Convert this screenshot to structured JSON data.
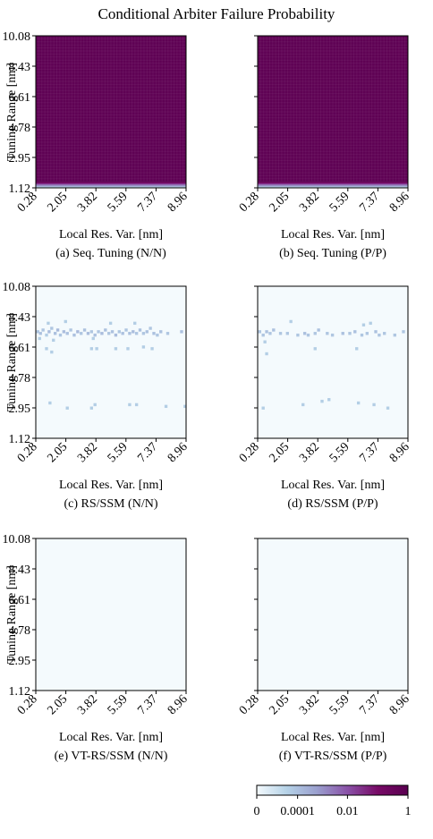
{
  "figure": {
    "title": "Conditional Arbiter Failure Probability"
  },
  "colorbar": {
    "tick_labels": [
      "0",
      "0.0001",
      "0.01",
      "1"
    ],
    "colors": [
      "#f4fafd",
      "#b5d2e7",
      "#9a9fce",
      "#8a52a8",
      "#770a66",
      "#5a0050"
    ]
  },
  "chart_data": [
    {
      "type": "heatmap",
      "caption": "(a) Seq. Tuning (N/N)",
      "xlabel": "Local Res. Var. [nm]",
      "ylabel": "Tuning Range [nm]",
      "x_ticks": [
        "0.28",
        "2.05",
        "3.82",
        "5.59",
        "7.37",
        "8.96"
      ],
      "y_ticks": [
        "10.08",
        "8.43",
        "6.61",
        "4.78",
        "2.95",
        "1.12"
      ],
      "xlim": [
        0.28,
        8.96
      ],
      "ylim": [
        1.12,
        10.08
      ],
      "pattern": "saturated",
      "base_value": 0.6,
      "fade_band": [
        1.12,
        1.5
      ]
    },
    {
      "type": "heatmap",
      "caption": "(b) Seq. Tuning (P/P)",
      "xlabel": "Local Res. Var. [nm]",
      "ylabel": "",
      "x_ticks": [
        "0.28",
        "2.05",
        "3.82",
        "5.59",
        "7.37",
        "8.96"
      ],
      "y_ticks": [
        "10.08",
        "8.43",
        "6.61",
        "4.78",
        "2.95",
        "1.12"
      ],
      "xlim": [
        0.28,
        8.96
      ],
      "ylim": [
        1.12,
        10.08
      ],
      "pattern": "saturated",
      "base_value": 0.6,
      "fade_band": [
        1.12,
        1.5
      ]
    },
    {
      "type": "heatmap",
      "caption": "(c) RS/SSM (N/N)",
      "xlabel": "Local Res. Var. [nm]",
      "ylabel": "Tuning Range [nm]",
      "x_ticks": [
        "0.28",
        "2.05",
        "3.82",
        "5.59",
        "7.37",
        "8.96"
      ],
      "y_ticks": [
        "10.08",
        "8.43",
        "6.61",
        "4.78",
        "2.95",
        "1.12"
      ],
      "xlim": [
        0.28,
        8.96
      ],
      "ylim": [
        1.12,
        10.08
      ],
      "pattern": "sparse",
      "base_value": 0,
      "points": [
        {
          "x": 0.4,
          "y": 7.4,
          "v": 3e-05
        },
        {
          "x": 0.55,
          "y": 7.3,
          "v": 4e-05
        },
        {
          "x": 0.7,
          "y": 7.5,
          "v": 3e-05
        },
        {
          "x": 0.9,
          "y": 7.2,
          "v": 2e-05
        },
        {
          "x": 1.05,
          "y": 7.4,
          "v": 5e-05
        },
        {
          "x": 1.2,
          "y": 7.6,
          "v": 3e-05
        },
        {
          "x": 1.4,
          "y": 7.3,
          "v": 4e-05
        },
        {
          "x": 1.55,
          "y": 7.5,
          "v": 6e-05
        },
        {
          "x": 1.7,
          "y": 7.2,
          "v": 3e-05
        },
        {
          "x": 1.9,
          "y": 7.4,
          "v": 5e-05
        },
        {
          "x": 2.1,
          "y": 7.3,
          "v": 4e-05
        },
        {
          "x": 2.3,
          "y": 7.5,
          "v": 3e-05
        },
        {
          "x": 2.5,
          "y": 7.2,
          "v": 4e-05
        },
        {
          "x": 2.7,
          "y": 7.4,
          "v": 6e-05
        },
        {
          "x": 2.9,
          "y": 7.3,
          "v": 3e-05
        },
        {
          "x": 3.1,
          "y": 7.5,
          "v": 4e-05
        },
        {
          "x": 3.3,
          "y": 7.3,
          "v": 5e-05
        },
        {
          "x": 3.5,
          "y": 7.4,
          "v": 3e-05
        },
        {
          "x": 3.7,
          "y": 7.2,
          "v": 4e-05
        },
        {
          "x": 3.9,
          "y": 7.4,
          "v": 3e-05
        },
        {
          "x": 4.1,
          "y": 7.3,
          "v": 5e-05
        },
        {
          "x": 4.3,
          "y": 7.5,
          "v": 4e-05
        },
        {
          "x": 4.5,
          "y": 7.3,
          "v": 3e-05
        },
        {
          "x": 4.7,
          "y": 7.4,
          "v": 4e-05
        },
        {
          "x": 4.9,
          "y": 7.2,
          "v": 5e-05
        },
        {
          "x": 5.1,
          "y": 7.4,
          "v": 3e-05
        },
        {
          "x": 5.3,
          "y": 7.3,
          "v": 4e-05
        },
        {
          "x": 5.5,
          "y": 7.5,
          "v": 3e-05
        },
        {
          "x": 5.7,
          "y": 7.3,
          "v": 4e-05
        },
        {
          "x": 5.9,
          "y": 7.4,
          "v": 5e-05
        },
        {
          "x": 6.1,
          "y": 7.3,
          "v": 3e-05
        },
        {
          "x": 6.3,
          "y": 7.5,
          "v": 4e-05
        },
        {
          "x": 6.5,
          "y": 7.3,
          "v": 3e-05
        },
        {
          "x": 6.7,
          "y": 7.4,
          "v": 4e-05
        },
        {
          "x": 6.9,
          "y": 7.6,
          "v": 3e-05
        },
        {
          "x": 7.1,
          "y": 7.3,
          "v": 4e-05
        },
        {
          "x": 7.3,
          "y": 7.2,
          "v": 3e-05
        },
        {
          "x": 7.5,
          "y": 7.4,
          "v": 4e-05
        },
        {
          "x": 7.9,
          "y": 7.3,
          "v": 3e-05
        },
        {
          "x": 8.7,
          "y": 7.4,
          "v": 4e-05
        },
        {
          "x": 1.0,
          "y": 7.9,
          "v": 2e-05
        },
        {
          "x": 2.0,
          "y": 8.0,
          "v": 2e-05
        },
        {
          "x": 4.6,
          "y": 7.9,
          "v": 2e-05
        },
        {
          "x": 6.0,
          "y": 7.9,
          "v": 2e-05
        },
        {
          "x": 0.5,
          "y": 7.0,
          "v": 2e-05
        },
        {
          "x": 1.3,
          "y": 6.9,
          "v": 2e-05
        },
        {
          "x": 3.6,
          "y": 7.0,
          "v": 2e-05
        },
        {
          "x": 0.9,
          "y": 6.4,
          "v": 2e-05
        },
        {
          "x": 1.2,
          "y": 6.2,
          "v": 2e-05
        },
        {
          "x": 3.5,
          "y": 6.4,
          "v": 2e-05
        },
        {
          "x": 3.8,
          "y": 6.4,
          "v": 2e-05
        },
        {
          "x": 4.9,
          "y": 6.4,
          "v": 2e-05
        },
        {
          "x": 5.6,
          "y": 6.4,
          "v": 2e-05
        },
        {
          "x": 6.5,
          "y": 6.5,
          "v": 2e-05
        },
        {
          "x": 7.0,
          "y": 6.4,
          "v": 2e-05
        },
        {
          "x": 1.1,
          "y": 3.2,
          "v": 2e-05
        },
        {
          "x": 2.1,
          "y": 2.9,
          "v": 2e-05
        },
        {
          "x": 3.5,
          "y": 2.9,
          "v": 2e-05
        },
        {
          "x": 3.7,
          "y": 3.1,
          "v": 2e-05
        },
        {
          "x": 5.7,
          "y": 3.1,
          "v": 2e-05
        },
        {
          "x": 6.1,
          "y": 3.1,
          "v": 2e-05
        },
        {
          "x": 7.8,
          "y": 3.0,
          "v": 2e-05
        },
        {
          "x": 8.9,
          "y": 3.0,
          "v": 2e-05
        }
      ]
    },
    {
      "type": "heatmap",
      "caption": "(d) RS/SSM (P/P)",
      "xlabel": "Local Res. Var. [nm]",
      "ylabel": "",
      "x_ticks": [
        "0.28",
        "2.05",
        "3.82",
        "5.59",
        "7.37",
        "8.96"
      ],
      "y_ticks": [
        "10.08",
        "8.43",
        "6.61",
        "4.78",
        "2.95",
        "1.12"
      ],
      "xlim": [
        0.28,
        8.96
      ],
      "ylim": [
        1.12,
        10.08
      ],
      "pattern": "sparse",
      "base_value": 0,
      "points": [
        {
          "x": 0.4,
          "y": 7.4,
          "v": 3e-05
        },
        {
          "x": 0.6,
          "y": 7.2,
          "v": 3e-05
        },
        {
          "x": 0.8,
          "y": 7.4,
          "v": 4e-05
        },
        {
          "x": 1.0,
          "y": 7.3,
          "v": 3e-05
        },
        {
          "x": 1.2,
          "y": 7.5,
          "v": 4e-05
        },
        {
          "x": 1.6,
          "y": 7.3,
          "v": 3e-05
        },
        {
          "x": 2.0,
          "y": 7.3,
          "v": 3e-05
        },
        {
          "x": 2.6,
          "y": 7.2,
          "v": 3e-05
        },
        {
          "x": 3.0,
          "y": 7.3,
          "v": 4e-05
        },
        {
          "x": 3.2,
          "y": 7.2,
          "v": 3e-05
        },
        {
          "x": 3.6,
          "y": 7.3,
          "v": 3e-05
        },
        {
          "x": 3.8,
          "y": 7.5,
          "v": 4e-05
        },
        {
          "x": 4.3,
          "y": 7.3,
          "v": 3e-05
        },
        {
          "x": 4.6,
          "y": 7.2,
          "v": 3e-05
        },
        {
          "x": 5.2,
          "y": 7.3,
          "v": 4e-05
        },
        {
          "x": 5.6,
          "y": 7.3,
          "v": 3e-05
        },
        {
          "x": 5.9,
          "y": 7.4,
          "v": 4e-05
        },
        {
          "x": 6.3,
          "y": 7.2,
          "v": 3e-05
        },
        {
          "x": 6.6,
          "y": 7.3,
          "v": 3e-05
        },
        {
          "x": 7.1,
          "y": 7.4,
          "v": 4e-05
        },
        {
          "x": 7.3,
          "y": 7.2,
          "v": 3e-05
        },
        {
          "x": 7.6,
          "y": 7.3,
          "v": 3e-05
        },
        {
          "x": 8.2,
          "y": 7.2,
          "v": 3e-05
        },
        {
          "x": 8.7,
          "y": 7.4,
          "v": 3e-05
        },
        {
          "x": 2.2,
          "y": 8.0,
          "v": 2e-05
        },
        {
          "x": 6.4,
          "y": 7.8,
          "v": 2e-05
        },
        {
          "x": 6.8,
          "y": 7.9,
          "v": 2e-05
        },
        {
          "x": 0.7,
          "y": 6.8,
          "v": 2e-05
        },
        {
          "x": 3.6,
          "y": 6.4,
          "v": 2e-05
        },
        {
          "x": 6.0,
          "y": 6.4,
          "v": 2e-05
        },
        {
          "x": 0.8,
          "y": 6.1,
          "v": 2e-05
        },
        {
          "x": 0.6,
          "y": 2.9,
          "v": 2e-05
        },
        {
          "x": 2.9,
          "y": 3.1,
          "v": 2e-05
        },
        {
          "x": 4.0,
          "y": 3.3,
          "v": 2e-05
        },
        {
          "x": 4.4,
          "y": 3.4,
          "v": 2e-05
        },
        {
          "x": 6.1,
          "y": 3.2,
          "v": 2e-05
        },
        {
          "x": 7.0,
          "y": 3.1,
          "v": 2e-05
        },
        {
          "x": 7.8,
          "y": 2.9,
          "v": 2e-05
        }
      ]
    },
    {
      "type": "heatmap",
      "caption": "(e) VT-RS/SSM (N/N)",
      "xlabel": "Local Res. Var. [nm]",
      "ylabel": "Tuning Range [nm]",
      "x_ticks": [
        "0.28",
        "2.05",
        "3.82",
        "5.59",
        "7.37",
        "8.96"
      ],
      "y_ticks": [
        "10.08",
        "8.43",
        "6.61",
        "4.78",
        "2.95",
        "1.12"
      ],
      "xlim": [
        0.28,
        8.96
      ],
      "ylim": [
        1.12,
        10.08
      ],
      "pattern": "empty",
      "base_value": 0
    },
    {
      "type": "heatmap",
      "caption": "(f) VT-RS/SSM (P/P)",
      "xlabel": "Local Res. Var. [nm]",
      "ylabel": "",
      "x_ticks": [
        "0.28",
        "2.05",
        "3.82",
        "5.59",
        "7.37",
        "8.96"
      ],
      "y_ticks": [
        "10.08",
        "8.43",
        "6.61",
        "4.78",
        "2.95",
        "1.12"
      ],
      "xlim": [
        0.28,
        8.96
      ],
      "ylim": [
        1.12,
        10.08
      ],
      "pattern": "empty",
      "base_value": 0
    }
  ]
}
